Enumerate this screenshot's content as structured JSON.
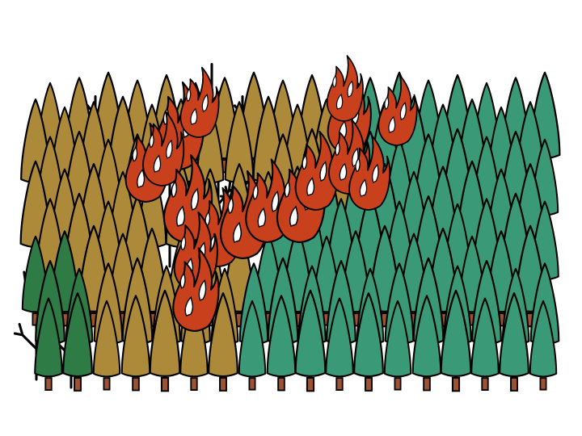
{
  "scene": {
    "background": "#ffffff",
    "colors": {
      "healthy_tree": "#3a9a78",
      "stressed_tree": "#ad8a39",
      "young_tree": "#2f7b45",
      "trunk": "#a0522d",
      "fire": "#c8401c",
      "dead_snag": "#111111",
      "outline": "#000000"
    },
    "icons": [
      "conifer-tree-icon",
      "dead-tree-icon",
      "flame-icon"
    ]
  }
}
